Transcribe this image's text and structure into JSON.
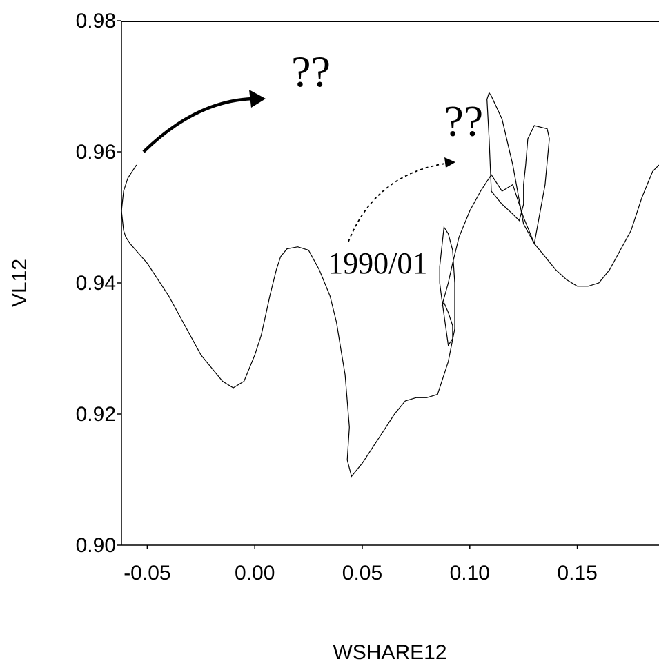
{
  "chart_data": {
    "type": "line",
    "xlabel": "WSHARE12",
    "ylabel": "VL12",
    "xlim": [
      -0.062,
      0.188
    ],
    "ylim": [
      0.9,
      0.98
    ],
    "x_ticks": [
      "-0.05",
      "0.00",
      "0.05",
      "0.10",
      "0.15"
    ],
    "x_tick_values": [
      -0.05,
      0.0,
      0.05,
      0.1,
      0.15
    ],
    "y_ticks": [
      "0.98",
      "0.96",
      "0.94",
      "0.92",
      "0.90"
    ],
    "y_tick_values": [
      0.98,
      0.96,
      0.94,
      0.92,
      0.9
    ],
    "grid": false,
    "legend": "none",
    "series": [
      {
        "x": [
          -0.055,
          -0.059,
          -0.061,
          -0.062,
          -0.061,
          -0.06,
          -0.058,
          -0.05,
          -0.04,
          -0.03,
          -0.025,
          -0.02,
          -0.015,
          -0.01,
          -0.005,
          0.0,
          0.003,
          0.005,
          0.007,
          0.01,
          0.012,
          0.015,
          0.02,
          0.025,
          0.03,
          0.035,
          0.038,
          0.04,
          0.042,
          0.043,
          0.044,
          0.043,
          0.045,
          0.05,
          0.055,
          0.06,
          0.065,
          0.07,
          0.075,
          0.08,
          0.085,
          0.09,
          0.093,
          0.093,
          0.092,
          0.09,
          0.088,
          0.087,
          0.086,
          0.086,
          0.087,
          0.09,
          0.092,
          0.092,
          0.09,
          0.088,
          0.087,
          0.09,
          0.092,
          0.095,
          0.1,
          0.105,
          0.11,
          0.115,
          0.12,
          0.125,
          0.13,
          0.135,
          0.137,
          0.136,
          0.13,
          0.127,
          0.126,
          0.125,
          0.125,
          0.123,
          0.12,
          0.115,
          0.11,
          0.109,
          0.108,
          0.109,
          0.11,
          0.115,
          0.12,
          0.125,
          0.13,
          0.135,
          0.14,
          0.145,
          0.15,
          0.155,
          0.16,
          0.165,
          0.17,
          0.175,
          0.18,
          0.185,
          0.188
        ],
        "y": [
          0.958,
          0.956,
          0.954,
          0.951,
          0.948,
          0.947,
          0.946,
          0.943,
          0.938,
          0.932,
          0.929,
          0.927,
          0.925,
          0.924,
          0.925,
          0.929,
          0.932,
          0.935,
          0.938,
          0.942,
          0.944,
          0.9452,
          0.9455,
          0.945,
          0.942,
          0.938,
          0.934,
          0.93,
          0.926,
          0.922,
          0.918,
          0.913,
          0.9105,
          0.9125,
          0.915,
          0.9175,
          0.92,
          0.922,
          0.9225,
          0.9225,
          0.923,
          0.928,
          0.933,
          0.94,
          0.945,
          0.9475,
          0.9485,
          0.9455,
          0.9425,
          0.94,
          0.9375,
          0.9305,
          0.9315,
          0.9335,
          0.9355,
          0.937,
          0.9365,
          0.94,
          0.943,
          0.947,
          0.951,
          0.954,
          0.9565,
          0.954,
          0.955,
          0.95,
          0.946,
          0.955,
          0.962,
          0.9635,
          0.964,
          0.962,
          0.958,
          0.955,
          0.952,
          0.9495,
          0.9505,
          0.952,
          0.954,
          0.962,
          0.968,
          0.969,
          0.9685,
          0.965,
          0.958,
          0.949,
          0.946,
          0.944,
          0.942,
          0.9405,
          0.9395,
          0.9395,
          0.94,
          0.942,
          0.945,
          0.948,
          0.953,
          0.957,
          0.958
        ]
      }
    ],
    "annotations": [
      {
        "text": "??",
        "x": 0.017,
        "y": 0.97
      },
      {
        "text": "??",
        "x": 0.088,
        "y": 0.9625
      },
      {
        "text": "1990/01",
        "x": 0.034,
        "y": 0.9415
      }
    ]
  }
}
